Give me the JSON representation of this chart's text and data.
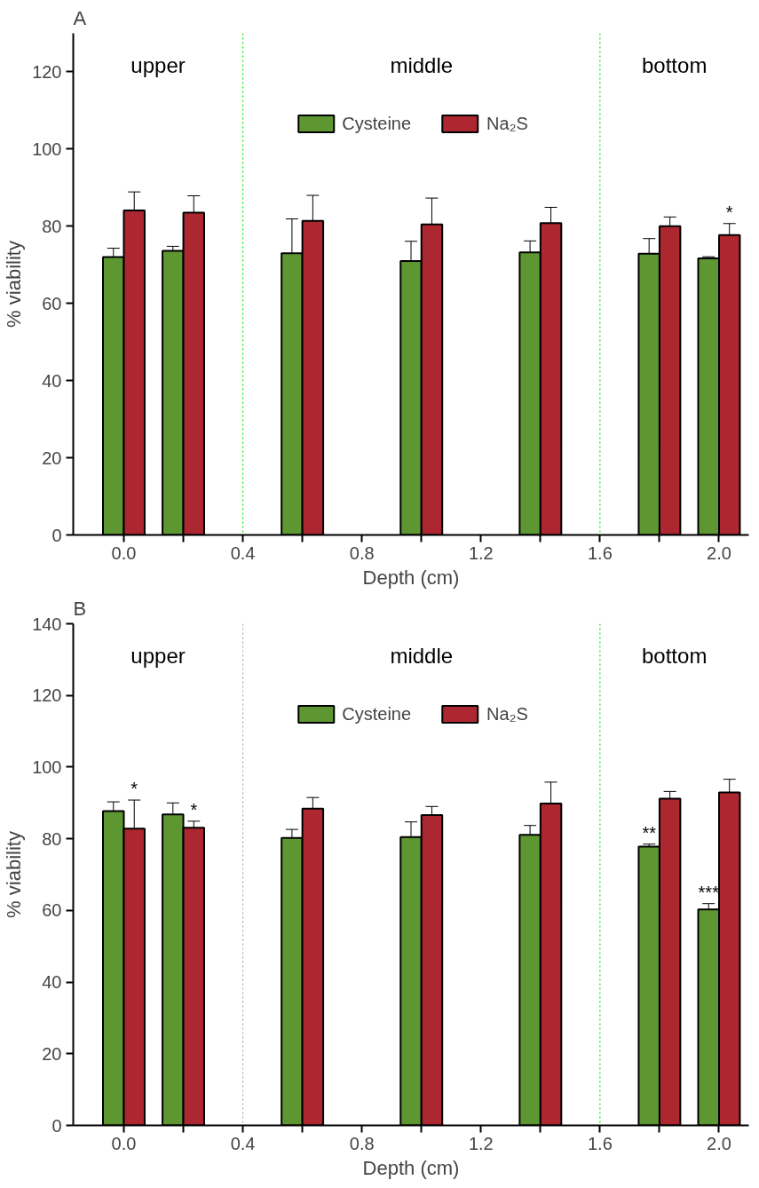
{
  "chart_data": [
    {
      "type": "bar",
      "title": "A",
      "xlabel": "Depth (cm)",
      "ylabel": "% viability",
      "x": [
        0.0,
        0.2,
        0.6,
        1.0,
        1.4,
        1.8,
        2.0
      ],
      "series": [
        {
          "name": "Cysteine",
          "color": "#5e9732",
          "values": [
            72.0,
            73.6,
            73.0,
            71.0,
            73.2,
            72.9,
            71.7
          ],
          "errors": [
            2.3,
            1.2,
            8.9,
            5.1,
            3.0,
            3.9,
            0.4
          ]
        },
        {
          "name": "Na₂S",
          "color": "#ac2730",
          "values": [
            84.1,
            83.5,
            81.4,
            80.5,
            80.8,
            80.0,
            77.7
          ],
          "errors": [
            4.8,
            4.4,
            6.6,
            6.8,
            4.1,
            2.4,
            3.0
          ],
          "value_labels": [
            null,
            null,
            null,
            null,
            null,
            null,
            "*"
          ]
        }
      ],
      "xlim": [
        -0.17,
        2.1
      ],
      "ylim": [
        0,
        130
      ],
      "xticks": [
        {
          "value": 0.0,
          "label": "0.0"
        },
        {
          "value": 0.2,
          "label": null
        },
        {
          "value": 0.4,
          "label": "0.4"
        },
        {
          "value": 0.6,
          "label": null
        },
        {
          "value": 0.8,
          "label": "0.8"
        },
        {
          "value": 1.0,
          "label": null
        },
        {
          "value": 1.2,
          "label": "1.2"
        },
        {
          "value": 1.4,
          "label": null
        },
        {
          "value": 1.6,
          "label": "1.6"
        },
        {
          "value": 1.8,
          "label": null
        },
        {
          "value": 2.0,
          "label": "2.0"
        }
      ],
      "yticks": [
        0,
        20,
        40,
        60,
        80,
        100,
        120
      ],
      "ref_lines": [
        {
          "axis": "x",
          "value": 0.4,
          "color": "#00ee00",
          "line_style": "dotted"
        },
        {
          "axis": "x",
          "value": 1.6,
          "color": "#00ee00",
          "line_style": "dotted"
        }
      ],
      "annotations": [
        "upper",
        "middle",
        "bottom"
      ],
      "legend": "top",
      "grid": false
    },
    {
      "type": "bar",
      "title": "B",
      "xlabel": "Depth (cm)",
      "ylabel": "% viability",
      "x": [
        0.0,
        0.2,
        0.6,
        1.0,
        1.4,
        1.8,
        2.0
      ],
      "series": [
        {
          "name": "Cysteine",
          "color": "#5e9732",
          "values": [
            87.7,
            86.8,
            80.2,
            80.5,
            81.1,
            77.8,
            60.3
          ],
          "errors": [
            2.6,
            3.2,
            2.4,
            4.2,
            2.6,
            0.7,
            1.6
          ],
          "value_labels": [
            null,
            null,
            null,
            null,
            null,
            "**",
            "***"
          ]
        },
        {
          "name": "Na₂S",
          "color": "#ac2730",
          "values": [
            82.8,
            83.1,
            88.4,
            86.6,
            89.8,
            91.2,
            92.9
          ],
          "errors": [
            8.0,
            1.8,
            3.1,
            2.4,
            6.0,
            2.0,
            3.7
          ],
          "value_labels": [
            "*",
            "*",
            null,
            null,
            null,
            null,
            null
          ]
        }
      ],
      "xlim": [
        -0.17,
        2.1
      ],
      "ylim": [
        0,
        140
      ],
      "xticks": [
        {
          "value": 0.0,
          "label": "0.0"
        },
        {
          "value": 0.2,
          "label": null
        },
        {
          "value": 0.4,
          "label": "0.4"
        },
        {
          "value": 0.6,
          "label": null
        },
        {
          "value": 0.8,
          "label": "0.8"
        },
        {
          "value": 1.0,
          "label": null
        },
        {
          "value": 1.2,
          "label": "1.2"
        },
        {
          "value": 1.4,
          "label": null
        },
        {
          "value": 1.6,
          "label": "1.6"
        },
        {
          "value": 1.8,
          "label": null
        },
        {
          "value": 2.0,
          "label": "2.0"
        }
      ],
      "yticks": [
        0,
        20,
        40,
        60,
        80,
        100,
        120,
        140
      ],
      "ref_lines": [
        {
          "axis": "x",
          "value": 0.4,
          "color": "#aaaaaa",
          "line_style": "dotted"
        },
        {
          "axis": "x",
          "value": 1.6,
          "color": "#00ee00",
          "line_style": "dotted"
        }
      ],
      "annotations": [
        "upper",
        "middle",
        "bottom"
      ],
      "legend": "top",
      "grid": false
    }
  ]
}
